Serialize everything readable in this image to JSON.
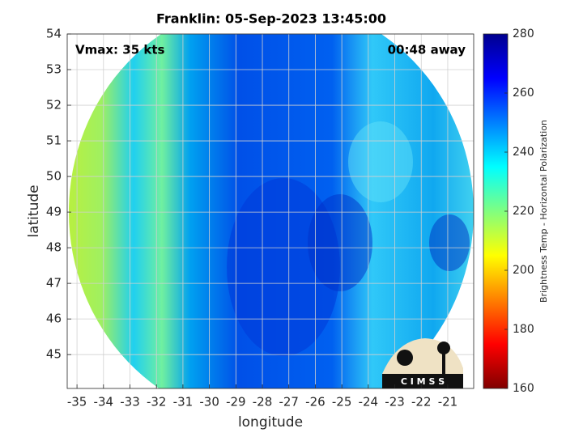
{
  "chart_data": {
    "type": "heatmap",
    "title": "Franklin: 05-Sep-2023 13:45:00",
    "annotations": [
      "Vmax: 35 kts",
      "00:48 away"
    ],
    "xlabel": "longitude",
    "ylabel": "latitude",
    "xlim": [
      -35.37,
      -20.02
    ],
    "ylim": [
      44.05,
      54
    ],
    "xticks": [
      -35,
      -34,
      -33,
      -32,
      -31,
      -30,
      -29,
      -28,
      -27,
      -26,
      -25,
      -24,
      -23,
      -22,
      -21
    ],
    "yticks": [
      45,
      46,
      47,
      48,
      49,
      50,
      51,
      52,
      53,
      54
    ],
    "grid": true,
    "colorbar": {
      "label": "Brightness Temp - Horizontal Polarization",
      "lim": [
        160,
        280
      ],
      "ticks": [
        160,
        180,
        200,
        220,
        240,
        260,
        280
      ],
      "colors": [
        "#800000",
        "#ff0000",
        "#ff8000",
        "#ffff00",
        "#80ff80",
        "#00ffff",
        "#0080ff",
        "#0000ff",
        "#00008f"
      ]
    },
    "logo": "C I M S S"
  }
}
